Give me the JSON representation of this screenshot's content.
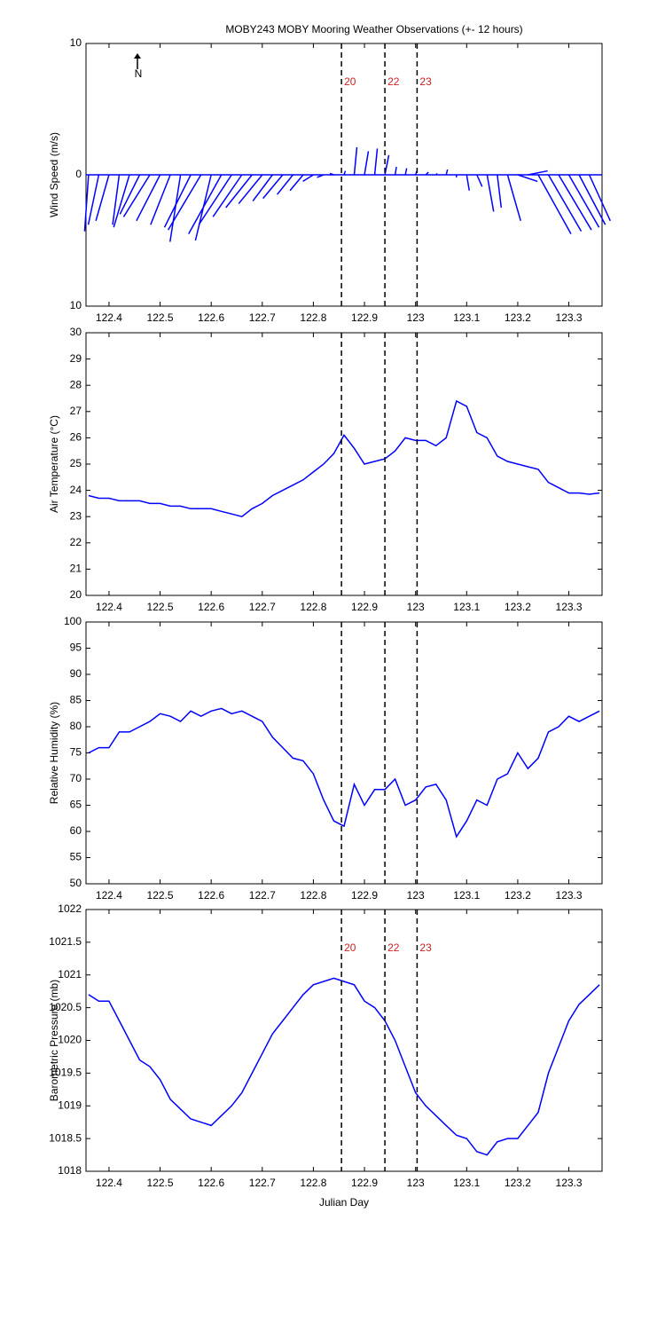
{
  "chart_data": [
    {
      "type": "quiver",
      "title": "MOBY243 MOBY Mooring Weather Observations (+- 12 hours)",
      "ylabel": "Wind Speed (m/s)",
      "annotation": "N",
      "xlim": [
        122.355,
        123.365
      ],
      "xticks": [
        122.4,
        122.5,
        122.6,
        122.7,
        122.8,
        122.9,
        123,
        123.1,
        123.2,
        123.3
      ],
      "ylim": [
        -10,
        10
      ],
      "yticks": [
        {
          "value": -10,
          "label": "10"
        },
        0,
        10
      ],
      "vlines": [
        122.855,
        122.94,
        123.003
      ],
      "vline_labels": [
        "20",
        "22",
        "23"
      ],
      "color": "#0000ff",
      "x": [
        122.36,
        122.38,
        122.4,
        122.42,
        122.44,
        122.46,
        122.48,
        122.5,
        122.52,
        122.54,
        122.56,
        122.58,
        122.6,
        122.62,
        122.64,
        122.66,
        122.68,
        122.7,
        122.72,
        122.74,
        122.76,
        122.78,
        122.8,
        122.82,
        122.84,
        122.86,
        122.88,
        122.9,
        122.92,
        122.94,
        122.96,
        122.98,
        123.0,
        123.02,
        123.04,
        123.06,
        123.08,
        123.1,
        123.12,
        123.14,
        123.16,
        123.18,
        123.2,
        123.22,
        123.24,
        123.26,
        123.28,
        123.3,
        123.32,
        123.34
      ],
      "u": [
        -0.3,
        -0.8,
        -1.0,
        -0.5,
        -1.2,
        -1.5,
        -2.0,
        -1.8,
        -1.5,
        -0.8,
        -2.0,
        -2.5,
        -1.2,
        -2.5,
        -2.5,
        -2.2,
        -2.0,
        -1.8,
        -1.5,
        -1.5,
        -1.2,
        -1.0,
        -0.8,
        -0.5,
        -0.3,
        0.1,
        0.2,
        0.3,
        0.2,
        0.3,
        0.1,
        0.1,
        0.1,
        0.2,
        0.1,
        0.1,
        0.0,
        0.2,
        0.4,
        0.5,
        0.3,
        1.0,
        1.5,
        1.5,
        2.5,
        2.5,
        2.5,
        2.3,
        2.0,
        1.6
      ],
      "v": [
        -4.3,
        -3.8,
        -3.5,
        -3.8,
        -4.0,
        -3.0,
        -3.2,
        -3.5,
        -3.8,
        -5.1,
        -4.0,
        -4.2,
        -5.0,
        -4.5,
        -3.8,
        -3.2,
        -2.5,
        -2.2,
        -2.0,
        -1.8,
        -1.5,
        -1.2,
        -0.5,
        -0.2,
        0.1,
        0.3,
        2.1,
        1.8,
        2.0,
        1.5,
        0.6,
        0.5,
        0.3,
        0.2,
        0.1,
        0.4,
        -0.2,
        -1.2,
        -0.9,
        -2.8,
        -2.5,
        -3.5,
        -0.5,
        0.3,
        -4.5,
        -4.3,
        -4.2,
        -4.0,
        -3.8,
        -3.5
      ]
    },
    {
      "type": "line",
      "ylabel": "Air Temperature (°C)",
      "xlim": [
        122.355,
        123.365
      ],
      "xticks": [
        122.4,
        122.5,
        122.6,
        122.7,
        122.8,
        122.9,
        123,
        123.1,
        123.2,
        123.3
      ],
      "ylim": [
        20,
        30
      ],
      "yticks": [
        20,
        21,
        22,
        23,
        24,
        25,
        26,
        27,
        28,
        29,
        30
      ],
      "vlines": [
        122.855,
        122.94,
        123.003
      ],
      "color": "#0000ff",
      "x": [
        122.36,
        122.38,
        122.4,
        122.42,
        122.44,
        122.46,
        122.48,
        122.5,
        122.52,
        122.54,
        122.56,
        122.58,
        122.6,
        122.62,
        122.64,
        122.66,
        122.68,
        122.7,
        122.72,
        122.74,
        122.76,
        122.78,
        122.8,
        122.82,
        122.84,
        122.86,
        122.88,
        122.9,
        122.92,
        122.94,
        122.96,
        122.98,
        123.0,
        123.02,
        123.04,
        123.06,
        123.08,
        123.1,
        123.12,
        123.14,
        123.16,
        123.18,
        123.2,
        123.22,
        123.24,
        123.26,
        123.28,
        123.3,
        123.32,
        123.34,
        123.36
      ],
      "values": [
        23.8,
        23.7,
        23.7,
        23.6,
        23.6,
        23.6,
        23.5,
        23.5,
        23.4,
        23.4,
        23.3,
        23.3,
        23.3,
        23.2,
        23.1,
        23.0,
        23.3,
        23.5,
        23.8,
        24.0,
        24.2,
        24.4,
        24.7,
        25.0,
        25.4,
        26.1,
        25.6,
        25.0,
        25.1,
        25.2,
        25.5,
        26.0,
        25.9,
        25.9,
        25.7,
        26.0,
        27.4,
        27.2,
        26.2,
        26.0,
        25.3,
        25.1,
        25.0,
        24.9,
        24.8,
        24.3,
        24.1,
        23.9,
        23.9,
        23.85,
        23.9
      ]
    },
    {
      "type": "line",
      "ylabel": "Relative Humidity (%)",
      "xlim": [
        122.355,
        123.365
      ],
      "xticks": [
        122.4,
        122.5,
        122.6,
        122.7,
        122.8,
        122.9,
        123,
        123.1,
        123.2,
        123.3
      ],
      "ylim": [
        50,
        100
      ],
      "yticks": [
        50,
        55,
        60,
        65,
        70,
        75,
        80,
        85,
        90,
        95,
        100
      ],
      "vlines": [
        122.855,
        122.94,
        123.003
      ],
      "color": "#0000ff",
      "x": [
        122.36,
        122.38,
        122.4,
        122.42,
        122.44,
        122.46,
        122.48,
        122.5,
        122.52,
        122.54,
        122.56,
        122.58,
        122.6,
        122.62,
        122.64,
        122.66,
        122.68,
        122.7,
        122.72,
        122.74,
        122.76,
        122.78,
        122.8,
        122.82,
        122.84,
        122.86,
        122.88,
        122.9,
        122.92,
        122.94,
        122.96,
        122.98,
        123.0,
        123.02,
        123.04,
        123.06,
        123.08,
        123.1,
        123.12,
        123.14,
        123.16,
        123.18,
        123.2,
        123.22,
        123.24,
        123.26,
        123.28,
        123.3,
        123.32,
        123.34,
        123.36
      ],
      "values": [
        75,
        76,
        76,
        79,
        79,
        80,
        81,
        82.5,
        82,
        81,
        83,
        82,
        83,
        83.5,
        82.5,
        83,
        82,
        81,
        78,
        76,
        74,
        73.5,
        71,
        66,
        62,
        61,
        69,
        65,
        68,
        68,
        70,
        65,
        66,
        68.5,
        69,
        66,
        59,
        62,
        66,
        65,
        70,
        71,
        75,
        72,
        74,
        79,
        80,
        82,
        81,
        82,
        83
      ]
    },
    {
      "type": "line",
      "ylabel": "Barometric Pressure (mb)",
      "xlabel": "Julian Day",
      "xlim": [
        122.355,
        123.365
      ],
      "xticks": [
        122.4,
        122.5,
        122.6,
        122.7,
        122.8,
        122.9,
        123,
        123.1,
        123.2,
        123.3
      ],
      "ylim": [
        1018,
        1022
      ],
      "yticks": [
        1018,
        1018.5,
        1019,
        1019.5,
        1020,
        1020.5,
        1021,
        1021.5,
        1022
      ],
      "vlines": [
        122.855,
        122.94,
        123.003
      ],
      "vline_labels": [
        "20",
        "22",
        "23"
      ],
      "color": "#0000ff",
      "x": [
        122.36,
        122.38,
        122.4,
        122.42,
        122.44,
        122.46,
        122.48,
        122.5,
        122.52,
        122.54,
        122.56,
        122.58,
        122.6,
        122.62,
        122.64,
        122.66,
        122.68,
        122.7,
        122.72,
        122.74,
        122.76,
        122.78,
        122.8,
        122.82,
        122.84,
        122.86,
        122.88,
        122.9,
        122.92,
        122.94,
        122.96,
        122.98,
        123.0,
        123.02,
        123.04,
        123.06,
        123.08,
        123.1,
        123.12,
        123.14,
        123.16,
        123.18,
        123.2,
        123.22,
        123.24,
        123.26,
        123.28,
        123.3,
        123.32,
        123.34,
        123.36
      ],
      "values": [
        1020.7,
        1020.6,
        1020.6,
        1020.3,
        1020.0,
        1019.7,
        1019.6,
        1019.4,
        1019.1,
        1018.95,
        1018.8,
        1018.75,
        1018.7,
        1018.85,
        1019.0,
        1019.2,
        1019.5,
        1019.8,
        1020.1,
        1020.3,
        1020.5,
        1020.7,
        1020.85,
        1020.9,
        1020.95,
        1020.9,
        1020.85,
        1020.6,
        1020.5,
        1020.3,
        1020.0,
        1019.6,
        1019.2,
        1019.0,
        1018.85,
        1018.7,
        1018.55,
        1018.5,
        1018.3,
        1018.25,
        1018.45,
        1018.5,
        1018.5,
        1018.7,
        1018.9,
        1019.5,
        1019.9,
        1020.3,
        1020.55,
        1020.7,
        1020.85
      ]
    }
  ]
}
